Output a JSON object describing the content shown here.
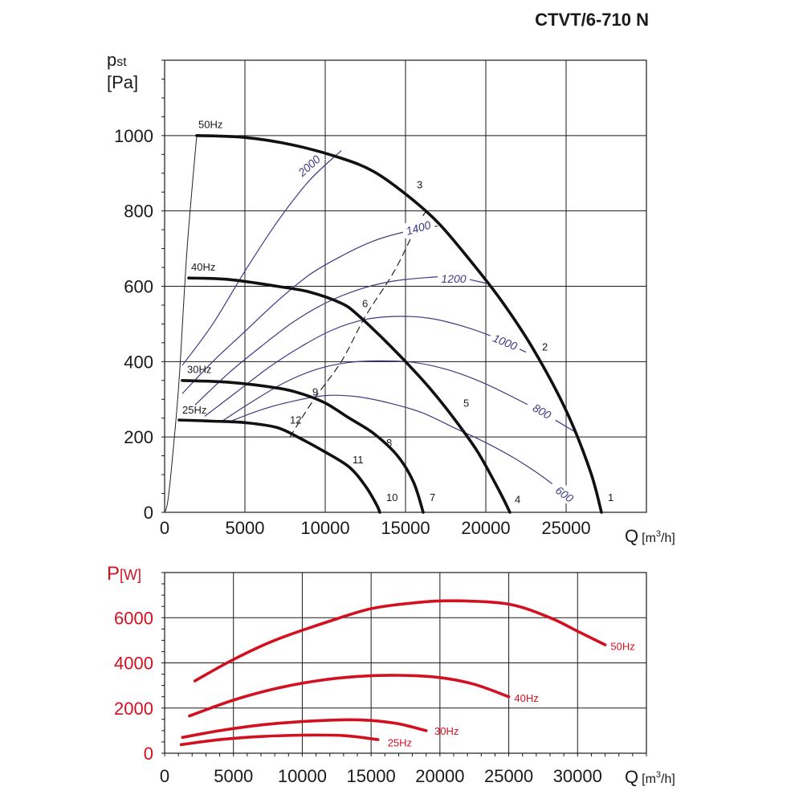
{
  "title": "CTVT/6-710 N",
  "colors": {
    "fan_curve": "#111111",
    "rpm_curve": "#3a3a86",
    "power_curve": "#d31020",
    "grid": "#1a1a1a"
  },
  "chart_data": [
    {
      "type": "line",
      "title": "CTVT/6-710 N",
      "ylabel_main": "p",
      "ylabel_sub": "st",
      "ylabel_unit": "[Pa]",
      "xlabel_main": "Q",
      "xlabel_unit": "[m",
      "xlabel_exp": "3",
      "xlabel_tail": "/h]",
      "xlim": [
        0,
        30000
      ],
      "ylim": [
        0,
        1200
      ],
      "x_ticks": [
        "0",
        "5000",
        "10000",
        "15000",
        "20000",
        "25000"
      ],
      "x_tick_values": [
        0,
        5000,
        10000,
        15000,
        20000,
        25000
      ],
      "y_ticks": [
        "0",
        "200",
        "400",
        "600",
        "800",
        "1000"
      ],
      "y_tick_values": [
        0,
        200,
        400,
        600,
        800,
        1000
      ],
      "grid": true,
      "series": [
        {
          "name": "50Hz",
          "kind": "fan",
          "points": [
            [
              2000,
              1000
            ],
            [
              5000,
              995
            ],
            [
              8000,
              975
            ],
            [
              11000,
              940
            ],
            [
              13000,
              905
            ],
            [
              15000,
              845
            ],
            [
              17000,
              770
            ],
            [
              19000,
              670
            ],
            [
              21000,
              560
            ],
            [
              23000,
              430
            ],
            [
              25000,
              270
            ],
            [
              26500,
              110
            ],
            [
              27200,
              0
            ]
          ]
        },
        {
          "name": "40Hz",
          "kind": "fan",
          "points": [
            [
              1500,
              622
            ],
            [
              4000,
              618
            ],
            [
              7000,
              600
            ],
            [
              9000,
              585
            ],
            [
              11000,
              555
            ],
            [
              12000,
              525
            ],
            [
              13500,
              465
            ],
            [
              15000,
              400
            ],
            [
              16500,
              330
            ],
            [
              18000,
              250
            ],
            [
              19500,
              160
            ],
            [
              20800,
              60
            ],
            [
              21500,
              0
            ]
          ]
        },
        {
          "name": "30Hz",
          "kind": "fan",
          "points": [
            [
              1100,
              350
            ],
            [
              4000,
              345
            ],
            [
              7000,
              330
            ],
            [
              8500,
              315
            ],
            [
              10000,
              290
            ],
            [
              11500,
              250
            ],
            [
              13000,
              210
            ],
            [
              14500,
              150
            ],
            [
              15500,
              80
            ],
            [
              16100,
              0
            ]
          ]
        },
        {
          "name": "25Hz",
          "kind": "fan",
          "points": [
            [
              900,
              245
            ],
            [
              3000,
              242
            ],
            [
              5000,
              238
            ],
            [
              7000,
              225
            ],
            [
              8500,
              195
            ],
            [
              10000,
              160
            ],
            [
              11500,
              120
            ],
            [
              12500,
              70
            ],
            [
              13200,
              20
            ],
            [
              13400,
              0
            ]
          ]
        }
      ],
      "rpm_curves": [
        {
          "label": "2000",
          "label_at": [
            9000,
            920
          ],
          "label_angle": -42,
          "points": [
            [
              1100,
              390
            ],
            [
              3000,
              500
            ],
            [
              5000,
              640
            ],
            [
              7000,
              770
            ],
            [
              9000,
              880
            ],
            [
              11000,
              960
            ]
          ]
        },
        {
          "label": "1400",
          "label_at": [
            15800,
            755
          ],
          "label_angle": -16,
          "points": [
            [
              1100,
              315
            ],
            [
              3000,
              400
            ],
            [
              5000,
              480
            ],
            [
              7000,
              560
            ],
            [
              9000,
              630
            ],
            [
              11000,
              680
            ],
            [
              13000,
              720
            ],
            [
              15000,
              745
            ],
            [
              17000,
              760
            ]
          ]
        },
        {
          "label": "1200",
          "label_at": [
            18000,
            620
          ],
          "label_angle": 0,
          "points": [
            [
              1900,
              285
            ],
            [
              4000,
              370
            ],
            [
              6000,
              440
            ],
            [
              8000,
              505
            ],
            [
              10000,
              555
            ],
            [
              12000,
              590
            ],
            [
              14000,
              612
            ],
            [
              16000,
              622
            ],
            [
              18000,
              625
            ],
            [
              20000,
              608
            ]
          ]
        },
        {
          "label": "1000",
          "label_at": [
            21200,
            452
          ],
          "label_angle": 22,
          "points": [
            [
              2500,
              255
            ],
            [
              4500,
              320
            ],
            [
              6500,
              385
            ],
            [
              8500,
              440
            ],
            [
              10500,
              485
            ],
            [
              12500,
              512
            ],
            [
              14500,
              520
            ],
            [
              16500,
              515
            ],
            [
              18500,
              495
            ],
            [
              20500,
              465
            ],
            [
              22500,
              425
            ]
          ]
        },
        {
          "label": "800",
          "label_at": [
            23500,
            268
          ],
          "label_angle": 30,
          "points": [
            [
              3500,
              240
            ],
            [
              5500,
              295
            ],
            [
              7500,
              345
            ],
            [
              9500,
              380
            ],
            [
              11500,
              398
            ],
            [
              13500,
              402
            ],
            [
              15500,
              398
            ],
            [
              17500,
              380
            ],
            [
              19500,
              350
            ],
            [
              21500,
              310
            ],
            [
              23500,
              265
            ],
            [
              25500,
              215
            ]
          ]
        },
        {
          "label": "600",
          "label_at": [
            24900,
            48
          ],
          "label_angle": 36,
          "points": [
            [
              4000,
              240
            ],
            [
              6000,
              272
            ],
            [
              8000,
              295
            ],
            [
              10000,
              310
            ],
            [
              12000,
              307
            ],
            [
              14000,
              290
            ],
            [
              16000,
              265
            ],
            [
              18000,
              225
            ],
            [
              20000,
              185
            ],
            [
              22000,
              138
            ],
            [
              24000,
              80
            ],
            [
              25500,
              25
            ]
          ]
        }
      ],
      "inner_line": {
        "points": [
          [
            2000,
            1000
          ],
          [
            1400,
            700
          ],
          [
            900,
            350
          ],
          [
            500,
            150
          ],
          [
            200,
            30
          ],
          [
            0,
            0
          ]
        ]
      },
      "dashed_line": {
        "points": [
          [
            7800,
            200
          ],
          [
            9300,
            300
          ],
          [
            11000,
            400
          ],
          [
            12500,
            520
          ],
          [
            14300,
            640
          ],
          [
            15700,
            760
          ],
          [
            16300,
            800
          ]
        ]
      },
      "point_labels": [
        {
          "label": "1",
          "at": [
            27600,
            30
          ]
        },
        {
          "label": "2",
          "at": [
            23500,
            430
          ]
        },
        {
          "label": "3",
          "at": [
            15700,
            860
          ]
        },
        {
          "label": "4",
          "at": [
            21800,
            25
          ]
        },
        {
          "label": "5",
          "at": [
            18600,
            280
          ]
        },
        {
          "label": "6",
          "at": [
            12300,
            545
          ]
        },
        {
          "label": "7",
          "at": [
            16500,
            30
          ]
        },
        {
          "label": "8",
          "at": [
            13800,
            175
          ]
        },
        {
          "label": "9",
          "at": [
            9200,
            310
          ]
        },
        {
          "label": "10",
          "at": [
            13800,
            30
          ]
        },
        {
          "label": "11",
          "at": [
            11700,
            130
          ]
        },
        {
          "label": "12",
          "at": [
            7800,
            235
          ]
        }
      ],
      "series_label_at": [
        {
          "label": "50Hz",
          "at": [
            2100,
            1020
          ]
        },
        {
          "label": "40Hz",
          "at": [
            1650,
            642
          ]
        },
        {
          "label": "30Hz",
          "at": [
            1400,
            370
          ]
        },
        {
          "label": "25Hz",
          "at": [
            1100,
            262
          ]
        }
      ]
    },
    {
      "type": "line",
      "ylabel_main": "P",
      "ylabel_unit": "[W]",
      "xlabel_main": "Q",
      "xlabel_unit": "[m",
      "xlabel_exp": "3",
      "xlabel_tail": "/h]",
      "xlim": [
        0,
        35000
      ],
      "ylim": [
        0,
        8000
      ],
      "x_ticks": [
        "0",
        "5000",
        "10000",
        "15000",
        "20000",
        "25000",
        "30000"
      ],
      "x_tick_values": [
        0,
        5000,
        10000,
        15000,
        20000,
        25000,
        30000
      ],
      "y_ticks": [
        "0",
        "2000",
        "4000",
        "6000"
      ],
      "y_tick_values": [
        0,
        2000,
        4000,
        6000
      ],
      "grid": true,
      "series": [
        {
          "name": "50Hz",
          "points": [
            [
              2200,
              3200
            ],
            [
              5000,
              4150
            ],
            [
              8000,
              5000
            ],
            [
              12000,
              5850
            ],
            [
              15000,
              6400
            ],
            [
              18000,
              6650
            ],
            [
              21000,
              6750
            ],
            [
              25000,
              6600
            ],
            [
              28000,
              6000
            ],
            [
              30000,
              5400
            ],
            [
              32000,
              4800
            ]
          ],
          "label_at": [
            32400,
            4750
          ]
        },
        {
          "name": "40Hz",
          "points": [
            [
              1800,
              1650
            ],
            [
              5000,
              2350
            ],
            [
              8000,
              2850
            ],
            [
              11000,
              3200
            ],
            [
              14000,
              3400
            ],
            [
              17000,
              3450
            ],
            [
              20000,
              3350
            ],
            [
              22500,
              3050
            ],
            [
              25000,
              2500
            ]
          ],
          "label_at": [
            25400,
            2450
          ]
        },
        {
          "name": "30Hz",
          "points": [
            [
              1300,
              700
            ],
            [
              4000,
              1000
            ],
            [
              7000,
              1250
            ],
            [
              10000,
              1400
            ],
            [
              13000,
              1480
            ],
            [
              15000,
              1450
            ],
            [
              17000,
              1300
            ],
            [
              19000,
              1000
            ]
          ],
          "label_at": [
            19600,
            1000
          ]
        },
        {
          "name": "25Hz",
          "points": [
            [
              1200,
              380
            ],
            [
              4000,
              600
            ],
            [
              7000,
              740
            ],
            [
              10000,
              800
            ],
            [
              13000,
              780
            ],
            [
              15500,
              600
            ]
          ],
          "label_at": [
            16200,
            480
          ]
        }
      ]
    }
  ]
}
